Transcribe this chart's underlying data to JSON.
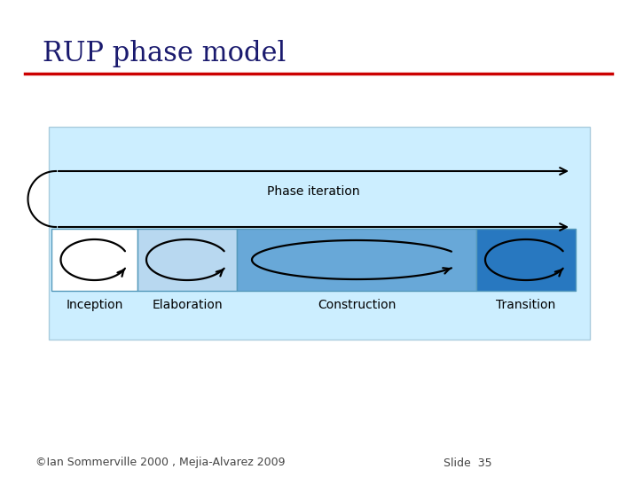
{
  "title": "RUP phase model",
  "title_color": "#1a1a6e",
  "title_fontsize": 22,
  "red_line_color": "#cc0000",
  "footer_left": "©Ian Sommerville 2000 , Mejia-Alvarez 2009",
  "footer_right": "Slide  35",
  "footer_color": "#444444",
  "footer_fontsize": 9,
  "bg_color": "#ffffff",
  "diagram_bg": "#cceeff",
  "phases": [
    "Inception",
    "Elaboration",
    "Construction",
    "Transition"
  ],
  "phase_colors": [
    "#ffffff",
    "#b8d8f0",
    "#68a8d8",
    "#2878c0"
  ],
  "phase_border": "#5599bb",
  "phase_text_color": "#000000",
  "phase_label_fontsize": 10,
  "phase_iteration_label": "Phase iteration",
  "arrow_color": "#000000",
  "diagram_border": "#aaccdd"
}
